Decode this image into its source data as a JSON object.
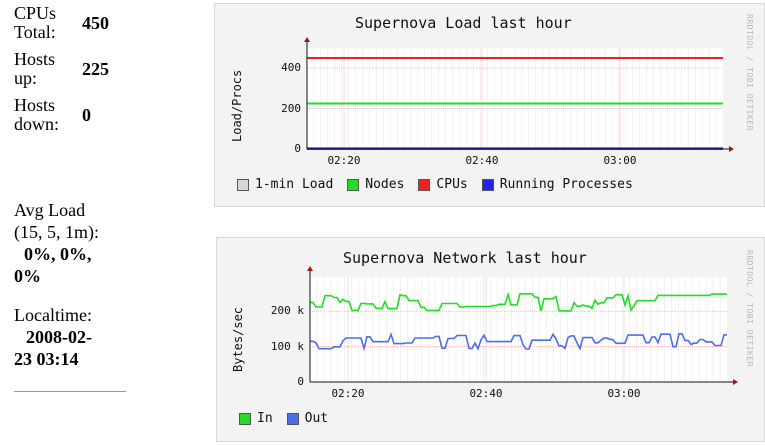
{
  "stats": {
    "cpus_label_1": "CPUs",
    "cpus_label_2": "Total:",
    "cpus_value": "450",
    "hosts_up_label_1": "Hosts",
    "hosts_up_label_2": "up:",
    "hosts_up_value": "225",
    "hosts_down_label_1": "Hosts",
    "hosts_down_label_2": "down:",
    "hosts_down_value": "0",
    "avg_load_label_1": "Avg Load",
    "avg_load_label_2": "(15, 5, 1m):",
    "avg_load_values_1": "0%, 0%,",
    "avg_load_values_2": "0%",
    "localtime_label": "Localtime:",
    "localtime_value_1": "2008-02-",
    "localtime_value_2": "23 03:14"
  },
  "load_graph": {
    "title": "Supernova Load last hour",
    "credit": "RRDTOOL / TOBI OETIKER",
    "ylabel": "Load/Procs",
    "yticks": [
      "400",
      "200",
      "0"
    ],
    "xticks": [
      "02:20",
      "02:40",
      "03:00"
    ],
    "legend": [
      {
        "label": "1-min Load",
        "color": "#d8d8d8"
      },
      {
        "label": "Nodes",
        "color": "#22dd22"
      },
      {
        "label": "CPUs",
        "color": "#ee2222"
      },
      {
        "label": "Running Processes",
        "color": "#2222ee"
      }
    ]
  },
  "net_graph": {
    "title": "Supernova Network last hour",
    "credit": "RRDTOOL / TOBI OETIKER",
    "ylabel": "Bytes/sec",
    "yticks": [
      "200 k",
      "100 k",
      "0"
    ],
    "xticks": [
      "02:20",
      "02:40",
      "03:00"
    ],
    "legend": [
      {
        "label": "In",
        "color": "#22dd22"
      },
      {
        "label": "Out",
        "color": "#4a6ee8"
      }
    ]
  },
  "chart_data": [
    {
      "type": "line",
      "title": "Supernova Load last hour",
      "ylabel": "Load/Procs",
      "xlabel": "",
      "x": [
        "02:20",
        "02:40",
        "03:00"
      ],
      "ylim": [
        0,
        470
      ],
      "series": [
        {
          "name": "1-min Load",
          "values": [
            0,
            0,
            0
          ]
        },
        {
          "name": "Nodes",
          "values": [
            225,
            225,
            225
          ]
        },
        {
          "name": "CPUs",
          "values": [
            450,
            450,
            450
          ]
        },
        {
          "name": "Running Processes",
          "values": [
            2,
            2,
            2
          ]
        }
      ]
    },
    {
      "type": "line",
      "title": "Supernova Network last hour",
      "ylabel": "Bytes/sec",
      "xlabel": "",
      "x": [
        "02:20",
        "02:40",
        "03:00"
      ],
      "ylim": [
        0,
        280
      ],
      "series": [
        {
          "name": "In",
          "values": [
            230,
            220,
            225
          ]
        },
        {
          "name": "Out",
          "values": [
            125,
            110,
            115
          ]
        }
      ]
    }
  ]
}
